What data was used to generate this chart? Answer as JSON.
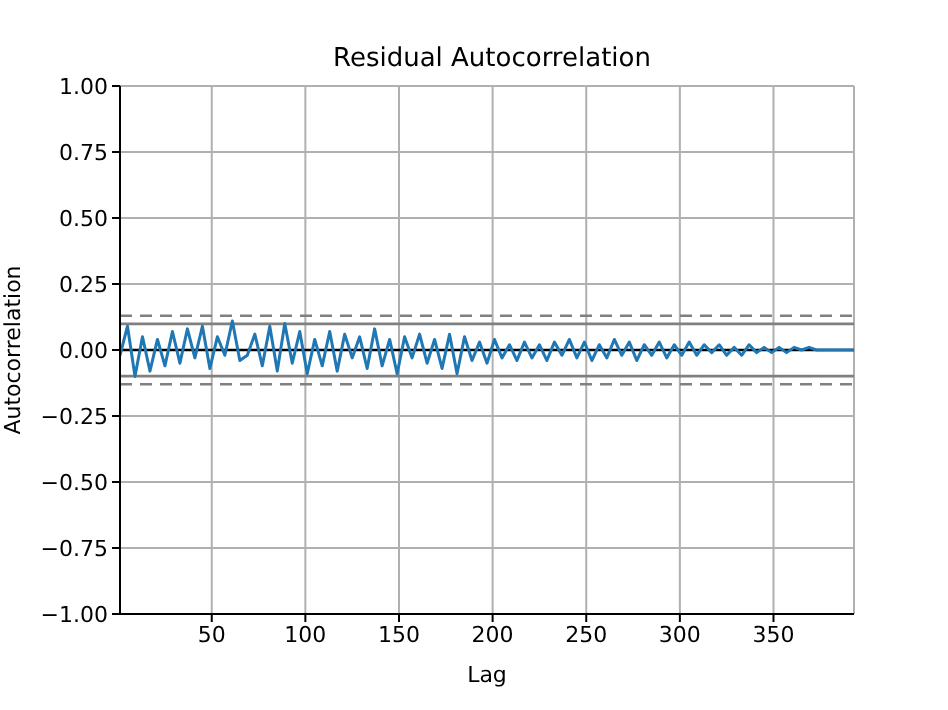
{
  "chart_data": {
    "type": "line",
    "title": "Residual Autocorrelation",
    "xlabel": "Lag",
    "ylabel": "Autocorrelation",
    "x": [
      1,
      5,
      9,
      13,
      17,
      21,
      25,
      29,
      33,
      37,
      41,
      45,
      49,
      53,
      57,
      61,
      65,
      69,
      73,
      77,
      81,
      85,
      89,
      93,
      97,
      101,
      105,
      109,
      113,
      117,
      121,
      125,
      129,
      133,
      137,
      141,
      145,
      149,
      153,
      157,
      161,
      165,
      169,
      173,
      177,
      181,
      185,
      189,
      193,
      197,
      201,
      205,
      209,
      213,
      217,
      221,
      225,
      229,
      233,
      237,
      241,
      245,
      249,
      253,
      257,
      261,
      265,
      269,
      273,
      277,
      281,
      285,
      289,
      293,
      297,
      301,
      305,
      309,
      313,
      317,
      321,
      325,
      329,
      333,
      337,
      341,
      345,
      349,
      353,
      357,
      361,
      365,
      369,
      373,
      377,
      381,
      385,
      389,
      393
    ],
    "series": [
      {
        "color": "#1f77b4",
        "values": [
          -0.02,
          0.09,
          -0.1,
          0.05,
          -0.08,
          0.04,
          -0.06,
          0.07,
          -0.05,
          0.08,
          -0.03,
          0.09,
          -0.07,
          0.05,
          -0.02,
          0.11,
          -0.04,
          -0.02,
          0.06,
          -0.06,
          0.09,
          -0.08,
          0.1,
          -0.05,
          0.07,
          -0.09,
          0.04,
          -0.06,
          0.07,
          -0.08,
          0.06,
          -0.03,
          0.05,
          -0.07,
          0.08,
          -0.06,
          0.04,
          -0.09,
          0.05,
          -0.03,
          0.06,
          -0.05,
          0.04,
          -0.07,
          0.06,
          -0.09,
          0.05,
          -0.04,
          0.03,
          -0.05,
          0.04,
          -0.03,
          0.02,
          -0.04,
          0.03,
          -0.03,
          0.02,
          -0.04,
          0.03,
          -0.02,
          0.04,
          -0.03,
          0.03,
          -0.04,
          0.02,
          -0.03,
          0.04,
          -0.02,
          0.03,
          -0.04,
          0.02,
          -0.02,
          0.03,
          -0.03,
          0.02,
          -0.02,
          0.03,
          -0.02,
          0.02,
          -0.01,
          0.02,
          -0.02,
          0.01,
          -0.02,
          0.02,
          -0.01,
          0.01,
          -0.01,
          0.01,
          -0.01,
          0.01,
          0.0,
          0.01,
          0.0,
          0.0,
          0.0,
          0.0,
          0.0,
          0.0
        ]
      }
    ],
    "xlim": [
      1,
      393
    ],
    "xticks": [
      50,
      100,
      150,
      200,
      250,
      300,
      350
    ],
    "ylim": [
      -1,
      1
    ],
    "yticks": [
      {
        "value": -1,
        "label": "−1.00"
      },
      {
        "value": -0.75,
        "label": "−0.75"
      },
      {
        "value": -0.5,
        "label": "−0.50"
      },
      {
        "value": -0.25,
        "label": "−0.25"
      },
      {
        "value": 0,
        "label": "0.00"
      },
      {
        "value": 0.25,
        "label": "0.25"
      },
      {
        "value": 0.5,
        "label": "0.50"
      },
      {
        "value": 0.75,
        "label": "0.75"
      },
      {
        "value": 1,
        "label": "1.00"
      }
    ],
    "ref_lines": [
      {
        "axis": "y",
        "value": 0.13,
        "color": "#808080",
        "line_style": "dashed"
      },
      {
        "axis": "y",
        "value": -0.13,
        "color": "#808080",
        "line_style": "dashed"
      },
      {
        "axis": "y",
        "value": 0.099,
        "color": "#808080",
        "line_style": "solid"
      },
      {
        "axis": "y",
        "value": -0.099,
        "color": "#808080",
        "line_style": "solid"
      },
      {
        "axis": "y",
        "value": 0,
        "color": "#000000",
        "line_style": "solid"
      }
    ],
    "grid": true,
    "legend": false,
    "marker": "none",
    "line_style": "solid"
  }
}
